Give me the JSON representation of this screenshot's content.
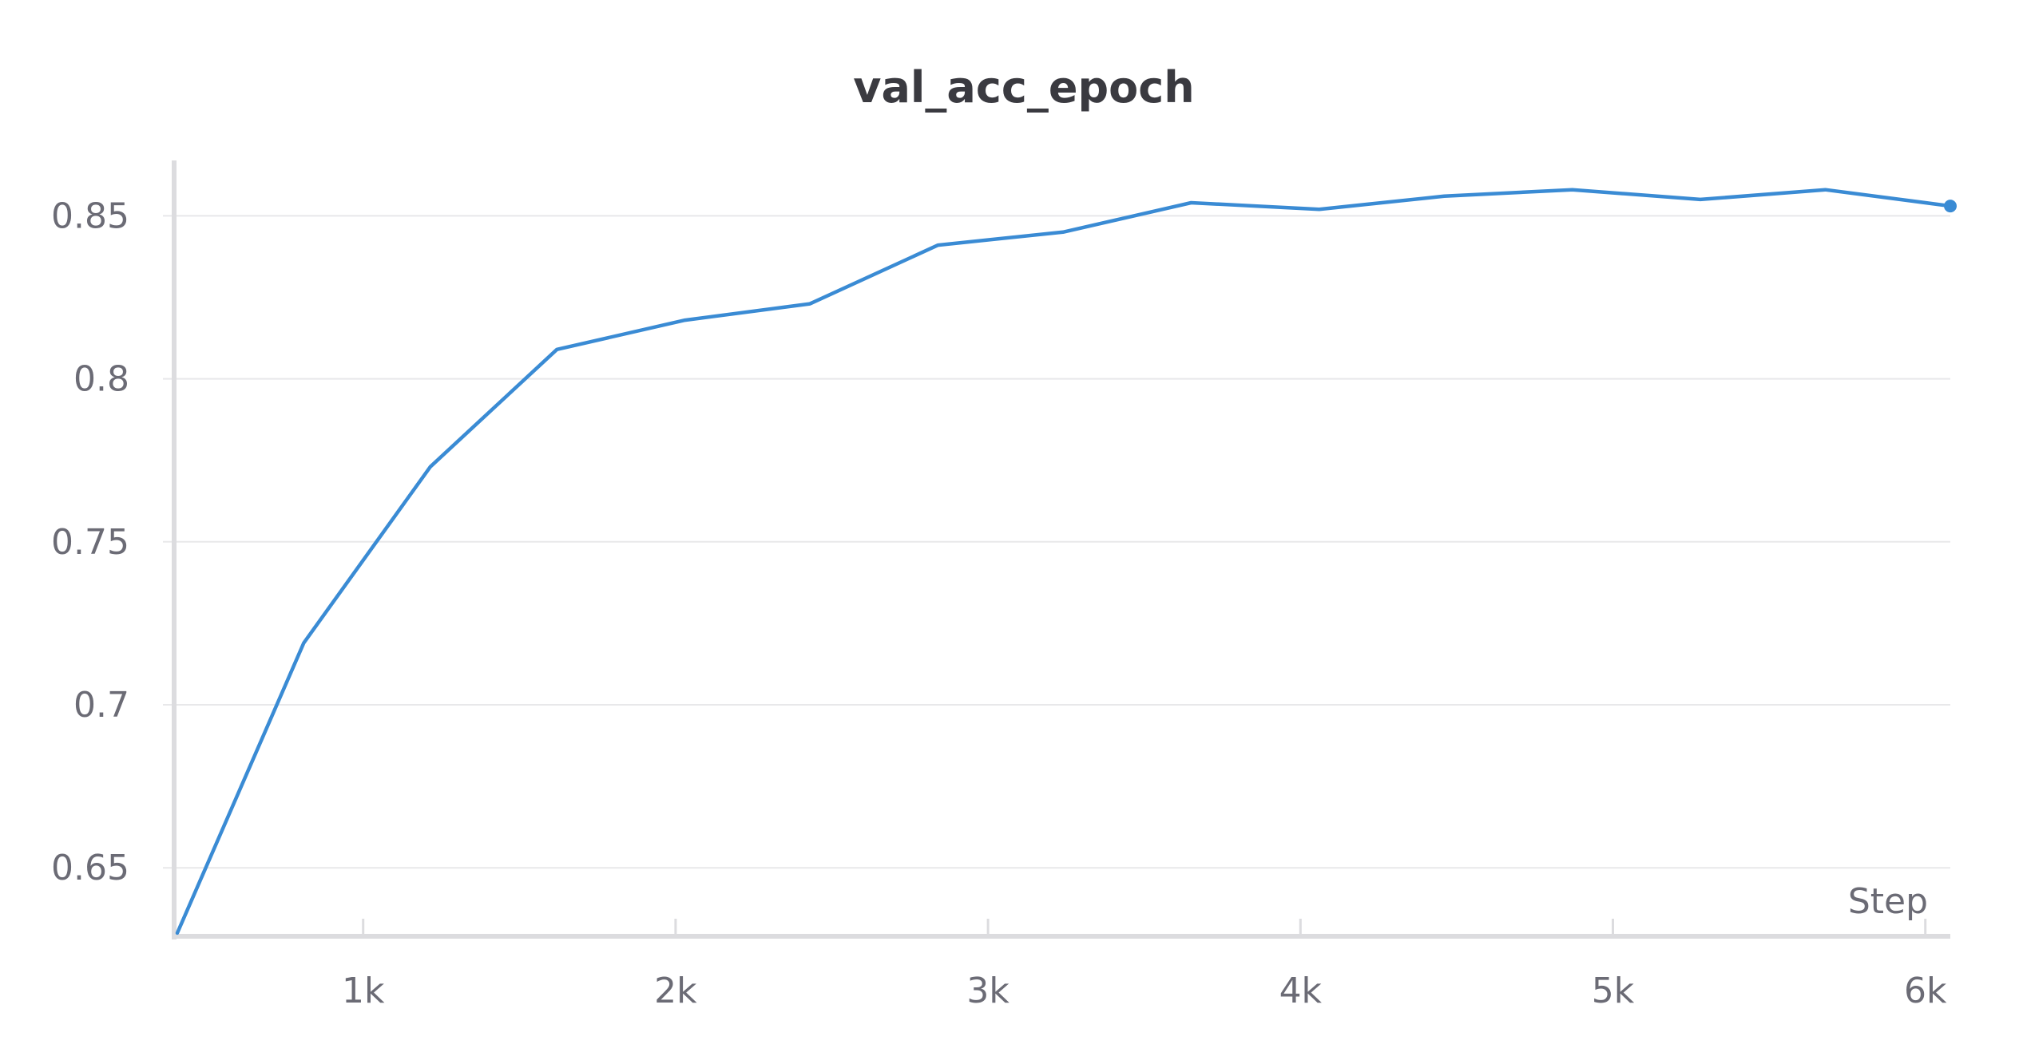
{
  "chart_data": {
    "type": "line",
    "title": "val_acc_epoch",
    "xlabel": "Step",
    "ylabel": "",
    "xlim": [
      400,
      6080
    ],
    "ylim": [
      0.629,
      0.866
    ],
    "grid": true,
    "x_ticks": [
      {
        "value": 1000,
        "label": "1k"
      },
      {
        "value": 2000,
        "label": "2k"
      },
      {
        "value": 3000,
        "label": "3k"
      },
      {
        "value": 4000,
        "label": "4k"
      },
      {
        "value": 5000,
        "label": "5k"
      },
      {
        "value": 6000,
        "label": "6k"
      }
    ],
    "y_ticks": [
      {
        "value": 0.65,
        "label": "0.65"
      },
      {
        "value": 0.7,
        "label": "0.7"
      },
      {
        "value": 0.75,
        "label": "0.75"
      },
      {
        "value": 0.8,
        "label": "0.8"
      },
      {
        "value": 0.85,
        "label": "0.85"
      }
    ],
    "series": [
      {
        "color": "#3a8bd4",
        "end_marker": true,
        "x": [
          405,
          810,
          1215,
          1620,
          2030,
          2430,
          2840,
          3240,
          3650,
          4060,
          4460,
          4870,
          5280,
          5680,
          6080
        ],
        "y": [
          0.63,
          0.719,
          0.773,
          0.809,
          0.818,
          0.823,
          0.841,
          0.845,
          0.854,
          0.852,
          0.856,
          0.858,
          0.855,
          0.858,
          0.853
        ]
      }
    ]
  }
}
